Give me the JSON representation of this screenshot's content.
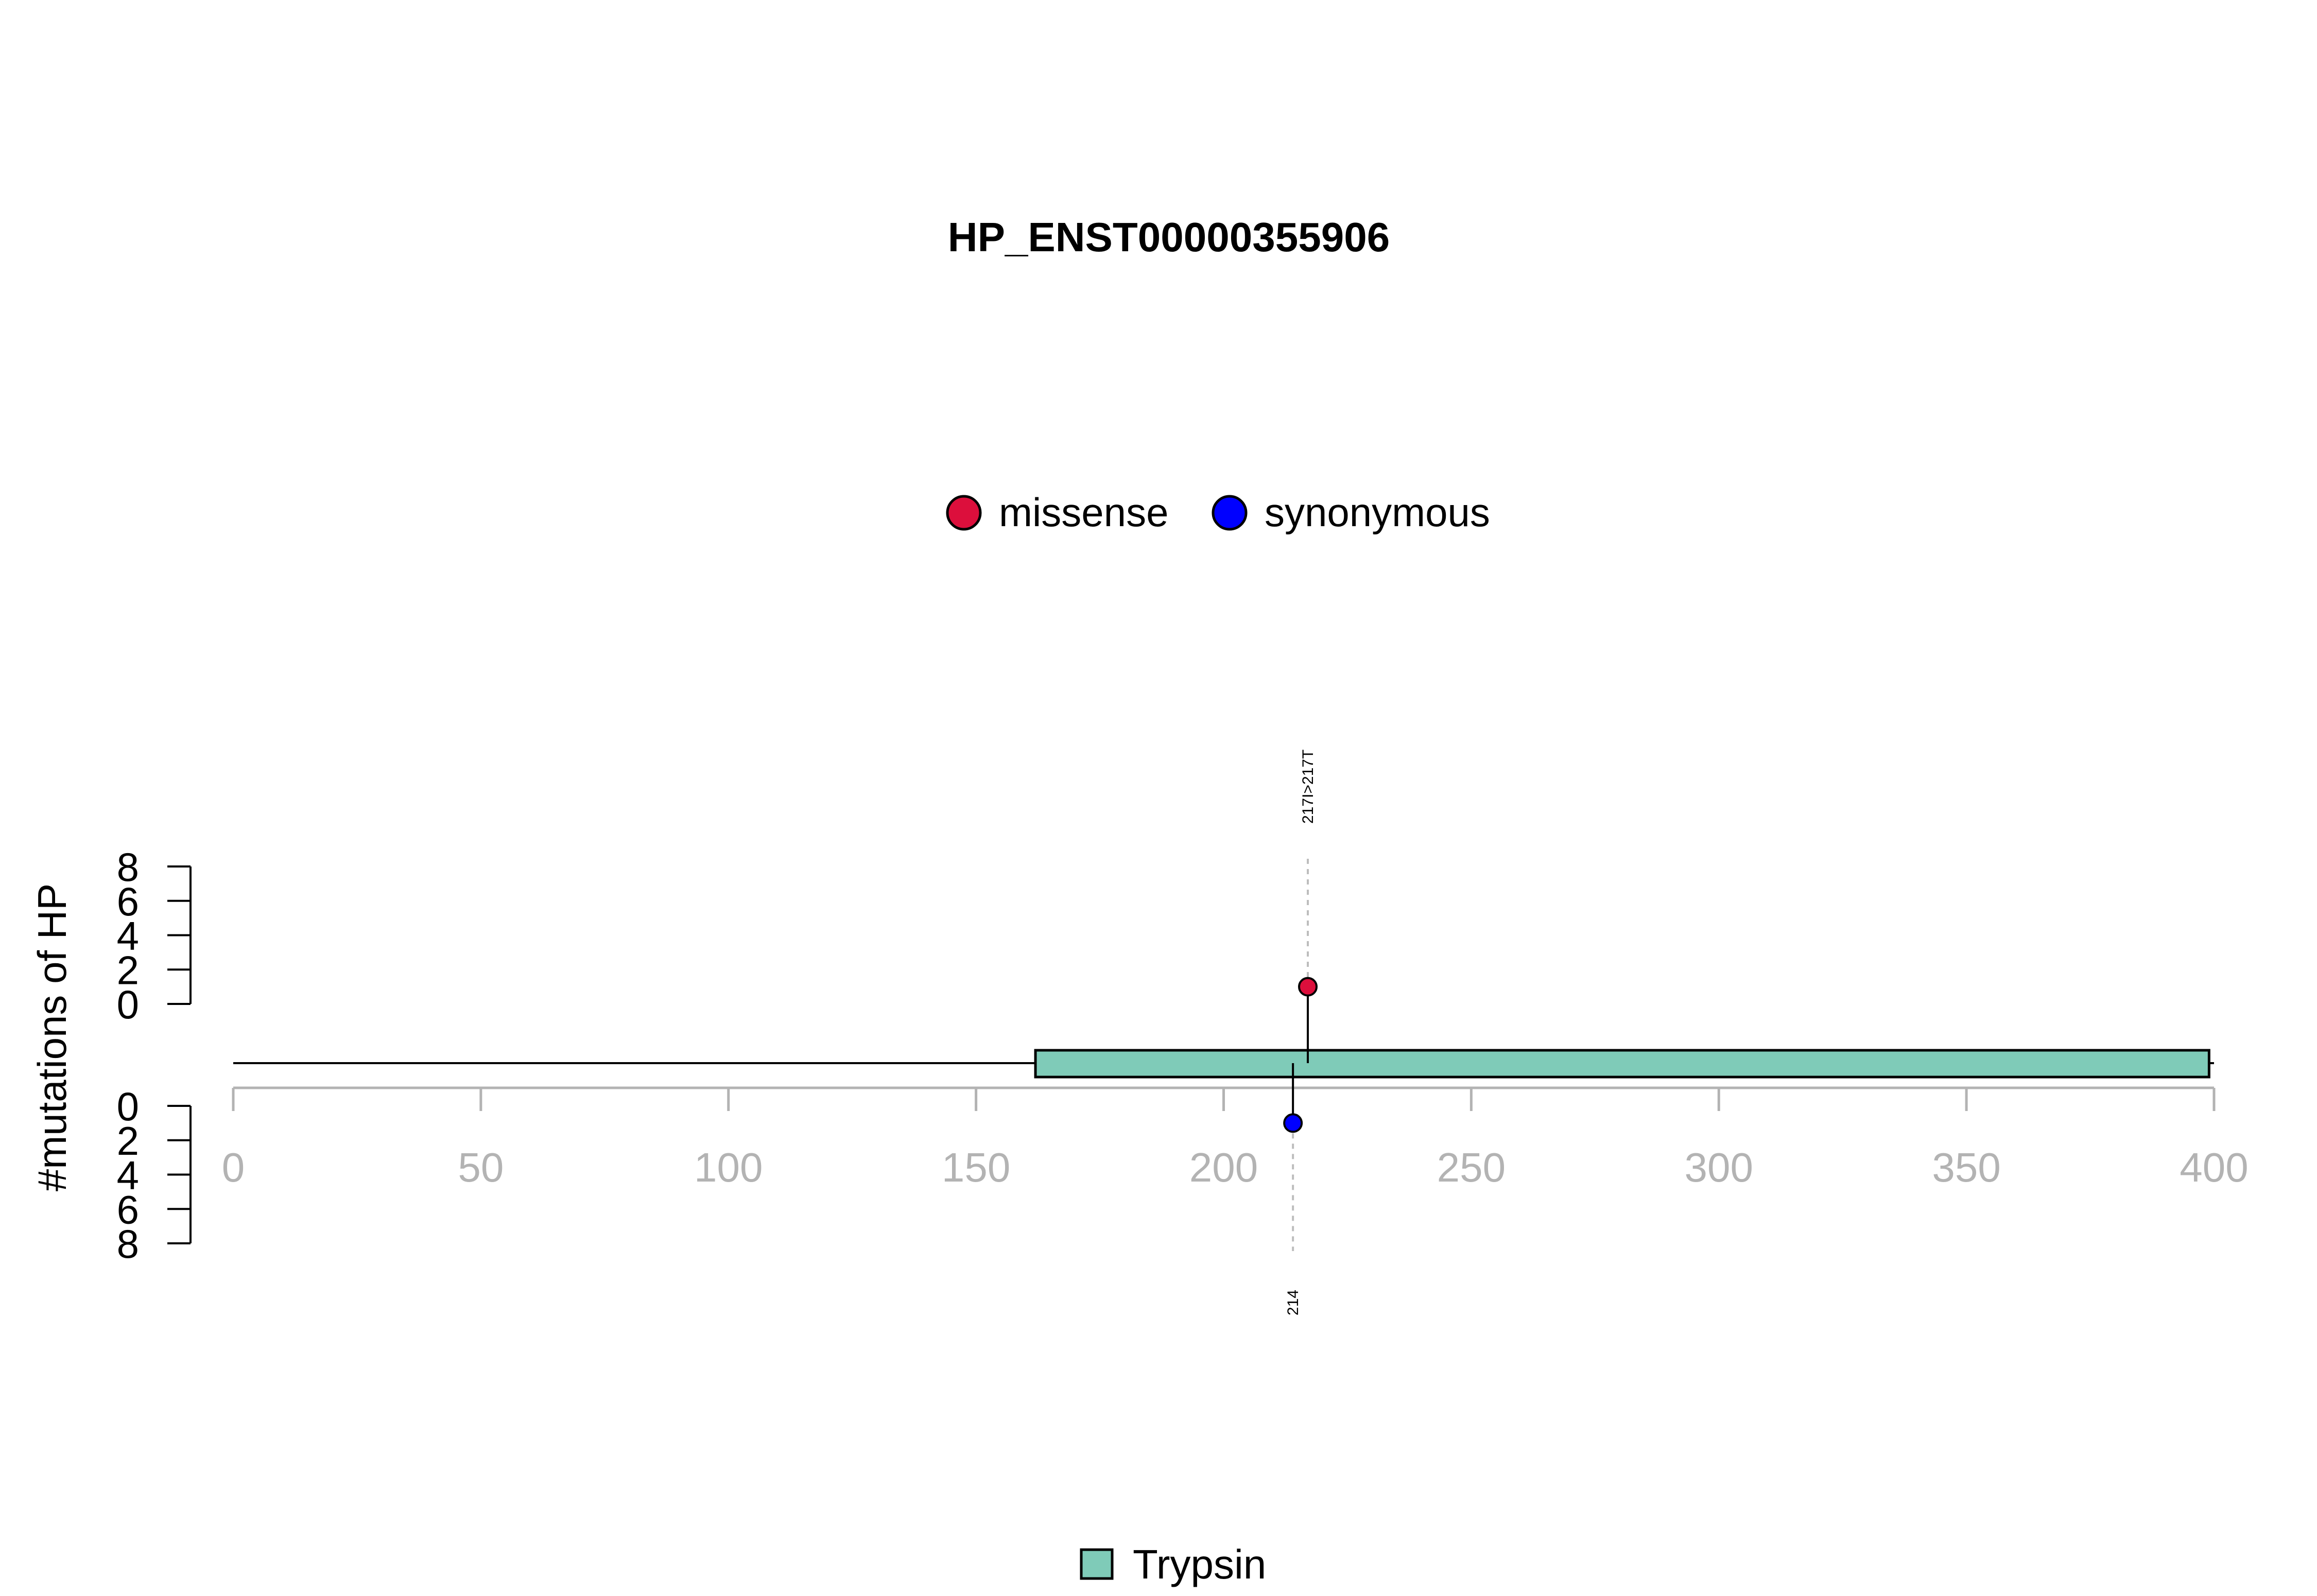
{
  "chart_data": {
    "type": "lollipop",
    "title": "HP_ENST00000355906",
    "ylabel": "#mutations of HP",
    "xlim": [
      0,
      400
    ],
    "x_ticks": [
      0,
      50,
      100,
      150,
      200,
      250,
      300,
      350,
      400
    ],
    "y_ticks_top": [
      8,
      6,
      4,
      2,
      0
    ],
    "y_ticks_bottom": [
      0,
      2,
      4,
      6,
      8
    ],
    "ylim": [
      0,
      8
    ],
    "legend_top": [
      {
        "label": "missense",
        "color": "#DC0F3C"
      },
      {
        "label": "synonymous",
        "color": "#0000FF"
      }
    ],
    "legend_bottom": [
      {
        "label": "Trypsin",
        "color": "#7FCBB8"
      }
    ],
    "protein_length": 400,
    "domains": [
      {
        "name": "Trypsin",
        "start": 162,
        "end": 399,
        "color": "#7FCBB8"
      }
    ],
    "mutations_top": [
      {
        "position": 217,
        "count": 1,
        "type": "missense",
        "label": "217I>217T",
        "color": "#DC0F3C"
      }
    ],
    "mutations_bottom": [
      {
        "position": 214,
        "count": 1,
        "type": "synonymous",
        "label": "214",
        "color": "#0000FF"
      }
    ]
  }
}
